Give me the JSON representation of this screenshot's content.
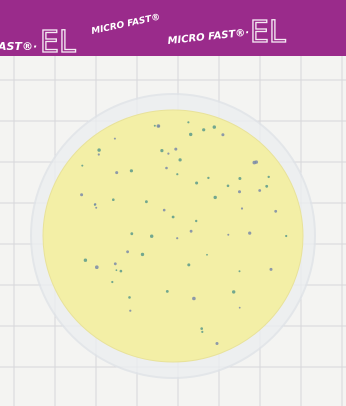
{
  "header": {
    "labels": [
      "AST®·",
      "EL",
      "MICRO FAST®",
      "MICRO FAST®·",
      "EL"
    ]
  }
}
